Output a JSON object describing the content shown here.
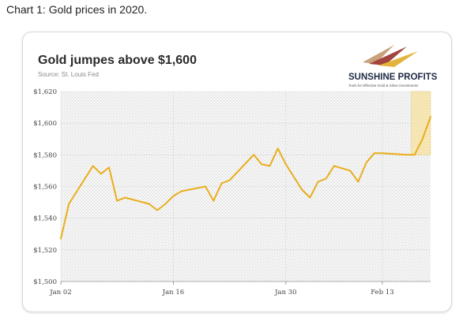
{
  "caption": "Chart 1: Gold prices in 2020.",
  "logo": {
    "name": "SUNSHINE PROFITS",
    "tagline": "Tools for Effective Gold & Silver Investments"
  },
  "colors": {
    "line": "#E8AE1C",
    "highlight_fill": "#F5E3A8",
    "highlight_border": "#E3C56A",
    "plot_bg": "#EEEEEE",
    "axis_text": "#444444",
    "grid": "#C8C8C8"
  },
  "chart_data": {
    "type": "line",
    "title": "Gold jumpes above $1,600",
    "subtitle": "Source: St. Louis Fed",
    "xlabel": "",
    "ylabel": "",
    "ylim": [
      1500,
      1620
    ],
    "y_ticks": [
      "$1,620",
      "$1,600",
      "$1,580",
      "$1,560",
      "$1,540",
      "$1,520",
      "$1,500"
    ],
    "y_tick_values": [
      1620,
      1600,
      1580,
      1560,
      1540,
      1520,
      1500
    ],
    "x_ticks": [
      "Jan 02",
      "Jan 16",
      "Jan 30",
      "Feb 13"
    ],
    "x_tick_index": [
      0,
      10,
      20,
      30
    ],
    "grid": true,
    "highlight_region": {
      "x_from": 32,
      "x_to": 34,
      "y_from": 1580,
      "y_to": 1620
    },
    "series": [
      {
        "x": [
          "Jan 02",
          "Jan 03",
          "Jan 06",
          "Jan 07",
          "Jan 08",
          "Jan 09",
          "Jan 10",
          "Jan 13",
          "Jan 14",
          "Jan 15",
          "Jan 16",
          "Jan 17",
          "Jan 21",
          "Jan 22",
          "Jan 23",
          "Jan 24",
          "Jan 27",
          "Jan 28",
          "Jan 29",
          "Jan 30",
          "Jan 31",
          "Feb 03",
          "Feb 04",
          "Feb 05",
          "Feb 06",
          "Feb 07",
          "Feb 10",
          "Feb 11",
          "Feb 12",
          "Feb 13",
          "Feb 14",
          "Feb 18",
          "Feb 19",
          "Feb 20",
          "Feb 21"
        ],
        "values": [
          1527,
          1549,
          1573,
          1568,
          1572,
          1551,
          1553,
          1549,
          1545,
          1549,
          1554,
          1557,
          1560,
          1551,
          1562,
          1564,
          1580,
          1574,
          1573,
          1584,
          1574,
          1558,
          1553,
          1563,
          1565,
          1573,
          1570,
          1563,
          1575,
          1581,
          1581,
          1580,
          1580,
          1590,
          1604
        ],
        "plot_x": [
          0,
          1,
          4,
          5,
          6,
          7,
          8,
          11,
          12,
          13,
          14,
          15,
          18,
          19,
          20,
          21,
          24,
          25,
          26,
          27,
          28,
          30,
          31,
          32,
          33,
          34,
          36,
          37,
          38,
          39,
          40,
          43,
          44,
          45,
          46
        ]
      }
    ]
  }
}
